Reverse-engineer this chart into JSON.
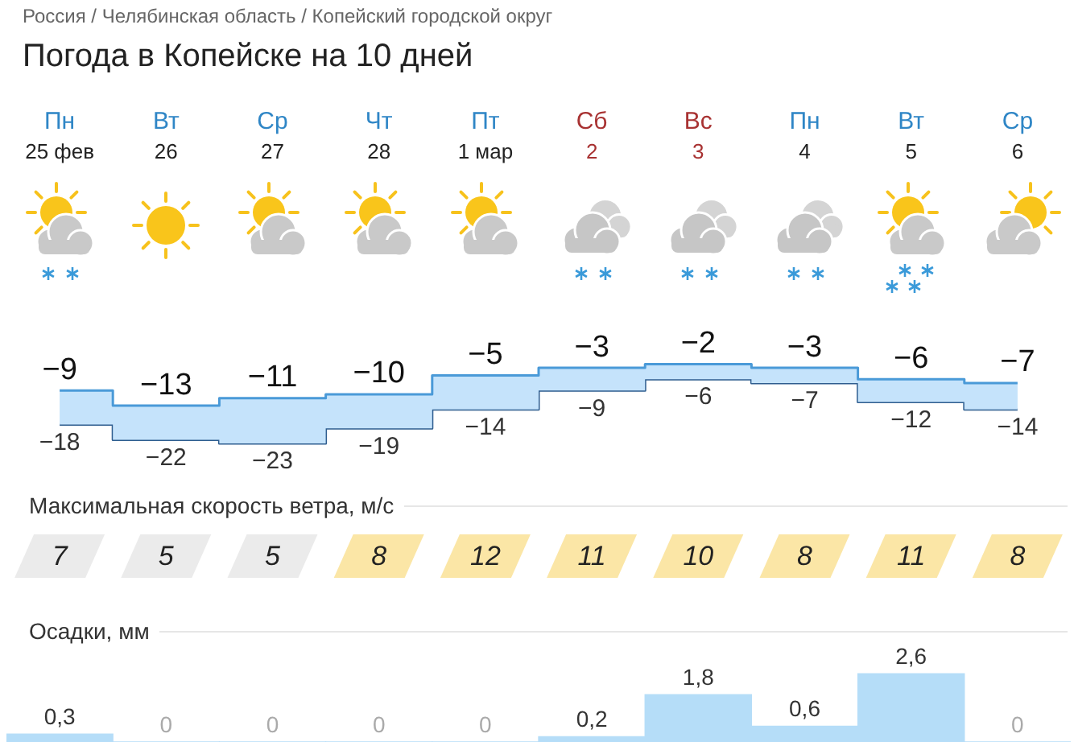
{
  "chart_data": [
    {
      "type": "step",
      "title": "Погода в Копейске на 10 дней",
      "annotations": [
        "Россия  /  Челябинская область  /  Копейский городской округ"
      ],
      "tick_labels": "x",
      "categories": [
        "Пн\n25 фев",
        "Вт\n26",
        "Ср\n27",
        "Чт\n28",
        "Пт\n1 мар",
        "Сб\n2",
        "Вс\n3",
        "Пн\n4",
        "Вт\n5",
        "Ср\n6"
      ],
      "series": [
        {
          "color": "#4a9ad8",
          "values": [
            -9,
            -13,
            -11,
            -10,
            -5,
            -3,
            -2,
            -3,
            -6,
            -7
          ],
          "value_labels": [
            "−9",
            "−13",
            "−11",
            "−10",
            "−5",
            "−3",
            "−2",
            "−3",
            "−6",
            "−7"
          ]
        },
        {
          "color": "#2e5d8f",
          "values": [
            -18,
            -22,
            -23,
            -19,
            -14,
            -9,
            -6,
            -7,
            -12,
            -14
          ],
          "value_labels": [
            "−18",
            "−22",
            "−23",
            "−19",
            "−14",
            "−9",
            "−6",
            "−7",
            "−12",
            "−14"
          ]
        }
      ]
    },
    {
      "type": "other",
      "title": "Максимальная скорость ветра, м/с",
      "categories": [
        null,
        null,
        null,
        null,
        null,
        null,
        null,
        null,
        null,
        null
      ],
      "values": [
        7,
        5,
        5,
        8,
        12,
        11,
        10,
        8,
        11,
        8
      ],
      "data_labels": true,
      "colors": [
        "#ebebeb",
        "#ebebeb",
        "#ebebeb",
        "#fbe6a6",
        "#fbe6a6",
        "#fbe6a6",
        "#fbe6a6",
        "#fbe6a6",
        "#fbe6a6",
        "#fbe6a6"
      ]
    },
    {
      "type": "bar",
      "title": "Осадки, мм",
      "tick_labels": false,
      "categories": [
        null,
        null,
        null,
        null,
        null,
        null,
        null,
        null,
        null,
        null
      ],
      "values": [
        0.3,
        0,
        0,
        0,
        0,
        0.2,
        1.8,
        0.6,
        2.6,
        0
      ],
      "color": "#b5ddf8",
      "value_labels": [
        "0,3",
        "0",
        "0",
        "0",
        "0",
        "0,2",
        "1,8",
        "0,6",
        "2,6",
        "0"
      ]
    }
  ]
}
